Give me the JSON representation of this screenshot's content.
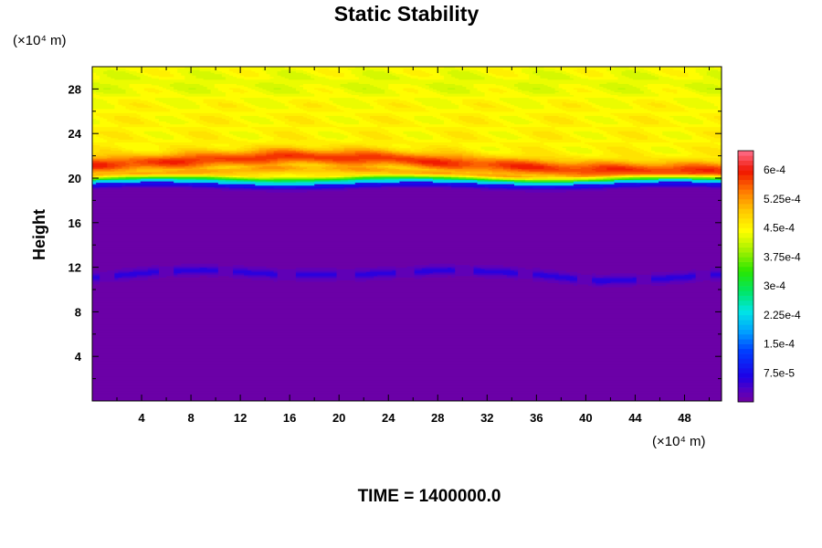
{
  "chart_data": {
    "type": "heatmap",
    "title": "Static Stability",
    "xlabel": "",
    "ylabel": "Height",
    "x_unit_label": "(×10⁴ m)",
    "y_unit_label": "(×10⁴ m)",
    "footer": "TIME = 1400000.0",
    "xlim": [
      0,
      51
    ],
    "ylim": [
      0,
      30
    ],
    "x_ticks": [
      4,
      8,
      12,
      16,
      20,
      24,
      28,
      32,
      36,
      40,
      44,
      48
    ],
    "x_tick_labels": [
      "4",
      "8",
      "12",
      "16",
      "20",
      "24",
      "28",
      "32",
      "36",
      "40",
      "44",
      "48"
    ],
    "y_ticks": [
      4,
      8,
      12,
      16,
      20,
      24,
      28
    ],
    "y_tick_labels": [
      "4",
      "8",
      "12",
      "16",
      "20",
      "24",
      "28"
    ],
    "colorbar": {
      "min": 0,
      "max": 0.00065,
      "step": 1.25e-05,
      "tick_values": [
        7.5e-05,
        0.00015,
        0.000225,
        0.0003,
        0.000375,
        0.00045,
        0.000525,
        0.0006
      ],
      "tick_labels": [
        "7.5e-5",
        "1.5e-4",
        "2.25e-4",
        "3e-4",
        "3.75e-4",
        "4.5e-4",
        "5.25e-4",
        "6e-4"
      ]
    },
    "field_description": {
      "lower_layer": {
        "y_range": [
          0,
          19.8
        ],
        "value": 1e-05
      },
      "tropopause_height": 19.8,
      "max_band": {
        "y_center": [
          21.2,
          21.6,
          22.0,
          21.8,
          21.2,
          20.8,
          20.7
        ],
        "x": [
          0,
          8,
          16,
          24,
          32,
          40,
          51
        ],
        "value": 0.00058
      },
      "upper_layer": {
        "y_range": [
          22.5,
          30
        ],
        "value": 0.00045
      },
      "weak_band_mid_level": {
        "y_center": [
          11.1,
          11.6,
          11.8,
          11.4,
          11.4,
          11.8,
          11.5,
          10.8,
          11.0,
          11.4
        ],
        "x": [
          0,
          5,
          9,
          15,
          22,
          29,
          35,
          41,
          46,
          51
        ],
        "value": 4e-05
      }
    }
  }
}
